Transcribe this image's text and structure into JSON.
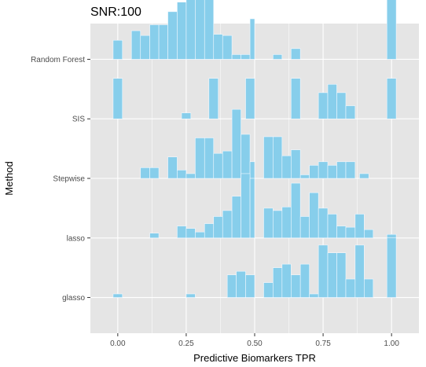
{
  "chart_data": {
    "type": "ridgeline-histogram",
    "title": "SNR:100",
    "xlabel": "Predictive Biomarkers TPR",
    "ylabel": "Method",
    "xlim": [
      -0.1,
      1.1
    ],
    "x_ticks": [
      0.0,
      0.25,
      0.5,
      0.75,
      1.0
    ],
    "x_tick_labels": [
      "0.00",
      "0.25",
      "0.50",
      "0.75",
      "1.00"
    ],
    "grid": true,
    "bin_width": 0.0333,
    "fill_color": "#87ceeb",
    "bin_edge_color": "#f0f8ff",
    "panel_color": "#e5e5e5",
    "gridline_color": "#ffffff",
    "categories": [
      "glasso",
      "lasso",
      "Stepwise",
      "SIS",
      "Random Forest"
    ],
    "ridge_height": 1.8,
    "series": [
      {
        "name": "glasso",
        "bins": [
          [
            -0.017,
            0.017,
            0.06
          ],
          [
            0.25,
            0.283,
            0.06
          ],
          [
            0.4,
            0.433,
            0.38
          ],
          [
            0.433,
            0.467,
            0.44
          ],
          [
            0.467,
            0.5,
            0.38
          ],
          [
            0.533,
            0.567,
            0.25
          ],
          [
            0.567,
            0.6,
            0.5
          ],
          [
            0.6,
            0.633,
            0.56
          ],
          [
            0.633,
            0.667,
            0.38
          ],
          [
            0.667,
            0.7,
            0.56
          ],
          [
            0.7,
            0.733,
            0.06
          ],
          [
            0.733,
            0.767,
            0.88
          ],
          [
            0.767,
            0.8,
            0.75
          ],
          [
            0.8,
            0.833,
            0.75
          ],
          [
            0.833,
            0.867,
            0.31
          ],
          [
            0.867,
            0.9,
            0.88
          ],
          [
            0.9,
            0.933,
            0.31
          ],
          [
            0.983,
            1.017,
            1.0
          ]
        ]
      },
      {
        "name": "lasso",
        "bins": [
          [
            0.117,
            0.15,
            0.08
          ],
          [
            0.217,
            0.25,
            0.2
          ],
          [
            0.25,
            0.283,
            0.16
          ],
          [
            0.283,
            0.317,
            0.1
          ],
          [
            0.317,
            0.35,
            0.24
          ],
          [
            0.35,
            0.383,
            0.36
          ],
          [
            0.383,
            0.417,
            0.46
          ],
          [
            0.417,
            0.45,
            0.7
          ],
          [
            0.45,
            0.483,
            1.08
          ],
          [
            0.483,
            0.5,
            1.0
          ],
          [
            0.533,
            0.567,
            0.5
          ],
          [
            0.567,
            0.6,
            0.46
          ],
          [
            0.6,
            0.633,
            0.52
          ],
          [
            0.633,
            0.667,
            0.92
          ],
          [
            0.667,
            0.7,
            0.36
          ],
          [
            0.7,
            0.733,
            0.76
          ],
          [
            0.733,
            0.767,
            0.5
          ],
          [
            0.767,
            0.8,
            0.4
          ],
          [
            0.8,
            0.833,
            0.2
          ],
          [
            0.833,
            0.867,
            0.18
          ],
          [
            0.867,
            0.9,
            0.4
          ],
          [
            0.9,
            0.933,
            0.14
          ],
          [
            0.983,
            1.017,
            0.06
          ]
        ]
      },
      {
        "name": "Stepwise",
        "bins": [
          [
            0.083,
            0.117,
            0.18
          ],
          [
            0.117,
            0.15,
            0.18
          ],
          [
            0.183,
            0.217,
            0.36
          ],
          [
            0.217,
            0.25,
            0.14
          ],
          [
            0.25,
            0.283,
            0.08
          ],
          [
            0.283,
            0.317,
            0.68
          ],
          [
            0.317,
            0.35,
            0.68
          ],
          [
            0.35,
            0.383,
            0.42
          ],
          [
            0.383,
            0.417,
            0.46
          ],
          [
            0.417,
            0.45,
            1.16
          ],
          [
            0.45,
            0.483,
            0.74
          ],
          [
            0.483,
            0.5,
            0.28
          ],
          [
            0.533,
            0.567,
            0.7
          ],
          [
            0.567,
            0.6,
            0.7
          ],
          [
            0.6,
            0.633,
            0.38
          ],
          [
            0.633,
            0.667,
            0.48
          ],
          [
            0.667,
            0.7,
            0.06
          ],
          [
            0.7,
            0.733,
            0.22
          ],
          [
            0.733,
            0.767,
            0.28
          ],
          [
            0.767,
            0.8,
            0.22
          ],
          [
            0.8,
            0.833,
            0.28
          ],
          [
            0.833,
            0.867,
            0.28
          ],
          [
            0.883,
            0.917,
            0.08
          ]
        ]
      },
      {
        "name": "SIS",
        "bins": [
          [
            -0.017,
            0.017,
            0.68
          ],
          [
            0.233,
            0.267,
            0.1
          ],
          [
            0.333,
            0.367,
            0.68
          ],
          [
            0.467,
            0.5,
            0.68
          ],
          [
            0.633,
            0.667,
            0.68
          ],
          [
            0.733,
            0.767,
            0.44
          ],
          [
            0.767,
            0.8,
            0.58
          ],
          [
            0.8,
            0.833,
            0.44
          ],
          [
            0.833,
            0.867,
            0.22
          ],
          [
            0.983,
            1.017,
            0.68
          ]
        ]
      },
      {
        "name": "Random Forest",
        "bins": [
          [
            -0.017,
            0.017,
            0.32
          ],
          [
            0.05,
            0.083,
            0.48
          ],
          [
            0.083,
            0.117,
            0.4
          ],
          [
            0.117,
            0.15,
            0.58
          ],
          [
            0.15,
            0.183,
            0.58
          ],
          [
            0.183,
            0.217,
            0.8
          ],
          [
            0.217,
            0.25,
            0.96
          ],
          [
            0.25,
            0.283,
            1.1
          ],
          [
            0.283,
            0.317,
            1.12
          ],
          [
            0.317,
            0.35,
            1.0
          ],
          [
            0.35,
            0.383,
            0.42
          ],
          [
            0.383,
            0.417,
            0.4
          ],
          [
            0.417,
            0.45,
            0.08
          ],
          [
            0.45,
            0.483,
            0.08
          ],
          [
            0.483,
            0.5,
            0.68
          ],
          [
            0.567,
            0.6,
            0.08
          ],
          [
            0.633,
            0.667,
            0.18
          ],
          [
            0.983,
            1.017,
            1.72
          ]
        ]
      }
    ]
  }
}
